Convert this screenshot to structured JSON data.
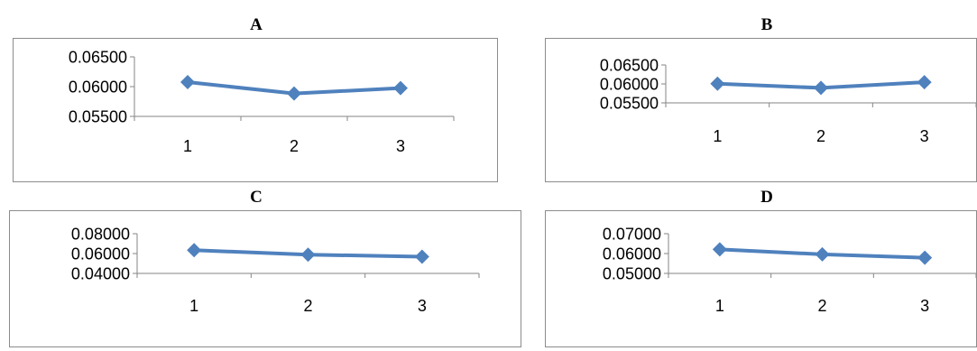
{
  "chart_data": [
    {
      "type": "line",
      "title": "A",
      "categories": [
        "1",
        "2",
        "3"
      ],
      "series": [
        {
          "values": [
            0.06075,
            0.05885,
            0.05975
          ]
        }
      ],
      "yticks": [
        "0.05500",
        "0.06000",
        "0.06500"
      ],
      "ylim": [
        0.055,
        0.065
      ],
      "color": "#4f81bd",
      "grid": false,
      "legend": "none"
    },
    {
      "type": "line",
      "title": "B",
      "categories": [
        "1",
        "2",
        "3"
      ],
      "series": [
        {
          "values": [
            0.06005,
            0.05895,
            0.06045
          ]
        }
      ],
      "yticks": [
        "0.05500",
        "0.06000",
        "0.06500"
      ],
      "ylim": [
        0.055,
        0.065
      ],
      "color": "#4f81bd",
      "grid": false,
      "legend": "none"
    },
    {
      "type": "line",
      "title": "C",
      "categories": [
        "1",
        "2",
        "3"
      ],
      "series": [
        {
          "values": [
            0.0634,
            0.0589,
            0.0568
          ]
        }
      ],
      "yticks": [
        "0.04000",
        "0.06000",
        "0.08000"
      ],
      "ylim": [
        0.04,
        0.08
      ],
      "color": "#4f81bd",
      "grid": false,
      "legend": "none"
    },
    {
      "type": "line",
      "title": "D",
      "categories": [
        "1",
        "2",
        "3"
      ],
      "series": [
        {
          "values": [
            0.0621,
            0.0596,
            0.0579
          ]
        }
      ],
      "yticks": [
        "0.05000",
        "0.06000",
        "0.07000"
      ],
      "ylim": [
        0.05,
        0.07
      ],
      "color": "#4f81bd",
      "grid": false,
      "legend": "none"
    }
  ]
}
